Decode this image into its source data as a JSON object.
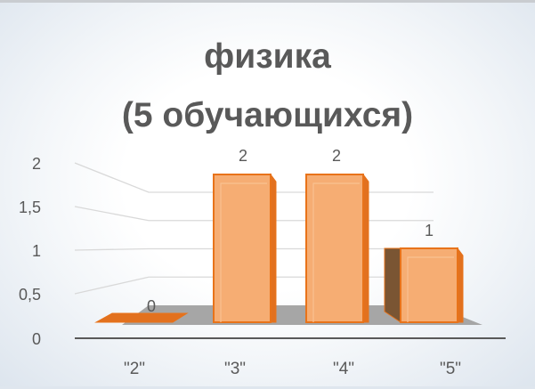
{
  "chart_data": {
    "type": "bar",
    "title": [
      "физика",
      "(5 обучающихся)"
    ],
    "categories": [
      "\"2\"",
      "\"3\"",
      "\"4\"",
      "\"5\""
    ],
    "values": [
      0,
      2,
      2,
      1
    ],
    "data_labels": [
      "0",
      "2",
      "2",
      "1"
    ],
    "y_ticks": [
      "0",
      "0,5",
      "1",
      "1,5",
      "2"
    ],
    "ylim": [
      0,
      2
    ],
    "grid": true,
    "legend": "none",
    "bar_style": "3d",
    "colors": {
      "bar_front": "#f6ad73",
      "bar_top": "#f9c191",
      "bar_side": "#e2711f",
      "bar_edge": "#e8731a",
      "bar_shadow": "#7a5533",
      "floor": "#a6a6a6",
      "grid": "#d9d9d9",
      "axis": "#595959",
      "text": "#595959"
    }
  }
}
